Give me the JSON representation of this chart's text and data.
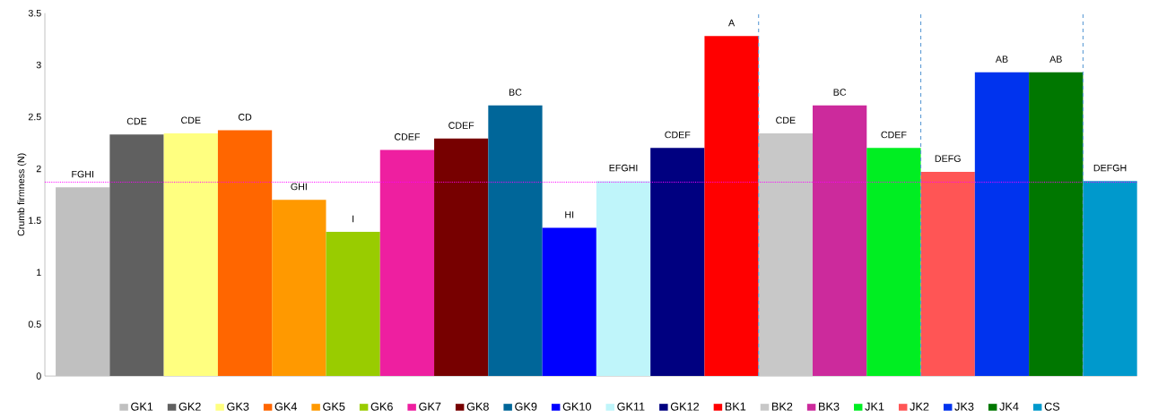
{
  "chart_data": {
    "type": "bar",
    "ylabel": "Crumb firmness (N)",
    "categories": [
      null,
      null,
      null,
      null,
      null,
      null,
      null,
      null,
      null,
      null,
      null,
      null,
      null,
      null,
      null,
      null,
      null,
      null,
      null,
      null
    ],
    "series": [
      {
        "name": "GK1",
        "color": "#c0c0c0",
        "values": [
          1.82,
          null,
          null,
          null,
          null,
          null,
          null,
          null,
          null,
          null,
          null,
          null,
          null,
          null,
          null,
          null,
          null,
          null,
          null,
          null
        ]
      },
      {
        "name": "GK2",
        "color": "#606060",
        "values": [
          null,
          2.33,
          null,
          null,
          null,
          null,
          null,
          null,
          null,
          null,
          null,
          null,
          null,
          null,
          null,
          null,
          null,
          null,
          null,
          null
        ]
      },
      {
        "name": "GK3",
        "color": "#ffff80",
        "values": [
          null,
          null,
          2.34,
          null,
          null,
          null,
          null,
          null,
          null,
          null,
          null,
          null,
          null,
          null,
          null,
          null,
          null,
          null,
          null,
          null
        ]
      },
      {
        "name": "GK4",
        "color": "#ff6600",
        "values": [
          null,
          null,
          null,
          2.37,
          null,
          null,
          null,
          null,
          null,
          null,
          null,
          null,
          null,
          null,
          null,
          null,
          null,
          null,
          null,
          null
        ]
      },
      {
        "name": "GK5",
        "color": "#ff9900",
        "values": [
          null,
          null,
          null,
          null,
          1.7,
          null,
          null,
          null,
          null,
          null,
          null,
          null,
          null,
          null,
          null,
          null,
          null,
          null,
          null,
          null
        ]
      },
      {
        "name": "GK6",
        "color": "#99cc00",
        "values": [
          null,
          null,
          null,
          null,
          null,
          1.39,
          null,
          null,
          null,
          null,
          null,
          null,
          null,
          null,
          null,
          null,
          null,
          null,
          null,
          null
        ]
      },
      {
        "name": "GK7",
        "color": "#ee1fa0",
        "values": [
          null,
          null,
          null,
          null,
          null,
          null,
          2.18,
          null,
          null,
          null,
          null,
          null,
          null,
          null,
          null,
          null,
          null,
          null,
          null,
          null
        ]
      },
      {
        "name": "GK8",
        "color": "#770000",
        "values": [
          null,
          null,
          null,
          null,
          null,
          null,
          null,
          2.29,
          null,
          null,
          null,
          null,
          null,
          null,
          null,
          null,
          null,
          null,
          null,
          null
        ]
      },
      {
        "name": "GK9",
        "color": "#006699",
        "values": [
          null,
          null,
          null,
          null,
          null,
          null,
          null,
          null,
          2.61,
          null,
          null,
          null,
          null,
          null,
          null,
          null,
          null,
          null,
          null,
          null
        ]
      },
      {
        "name": "GK10",
        "color": "#0000ff",
        "values": [
          null,
          null,
          null,
          null,
          null,
          null,
          null,
          null,
          null,
          1.43,
          null,
          null,
          null,
          null,
          null,
          null,
          null,
          null,
          null,
          null
        ]
      },
      {
        "name": "GK11",
        "color": "#bff5fa",
        "values": [
          null,
          null,
          null,
          null,
          null,
          null,
          null,
          null,
          null,
          null,
          1.88,
          null,
          null,
          null,
          null,
          null,
          null,
          null,
          null,
          null
        ]
      },
      {
        "name": "GK12",
        "color": "#000080",
        "values": [
          null,
          null,
          null,
          null,
          null,
          null,
          null,
          null,
          null,
          null,
          null,
          2.2,
          null,
          null,
          null,
          null,
          null,
          null,
          null,
          null
        ]
      },
      {
        "name": "BK1",
        "color": "#ff0000",
        "values": [
          null,
          null,
          null,
          null,
          null,
          null,
          null,
          null,
          null,
          null,
          null,
          null,
          3.28,
          null,
          null,
          null,
          null,
          null,
          null,
          null
        ]
      },
      {
        "name": "BK2",
        "color": "#c8c8c8",
        "values": [
          null,
          null,
          null,
          null,
          null,
          null,
          null,
          null,
          null,
          null,
          null,
          null,
          null,
          2.34,
          null,
          null,
          null,
          null,
          null,
          null
        ]
      },
      {
        "name": "BK3",
        "color": "#cc2a9c",
        "values": [
          null,
          null,
          null,
          null,
          null,
          null,
          null,
          null,
          null,
          null,
          null,
          null,
          null,
          null,
          2.61,
          null,
          null,
          null,
          null,
          null
        ]
      },
      {
        "name": "JK1",
        "color": "#00ee22",
        "values": [
          null,
          null,
          null,
          null,
          null,
          null,
          null,
          null,
          null,
          null,
          null,
          null,
          null,
          null,
          null,
          2.2,
          null,
          null,
          null,
          null
        ]
      },
      {
        "name": "JK2",
        "color": "#ff5555",
        "values": [
          null,
          null,
          null,
          null,
          null,
          null,
          null,
          null,
          null,
          null,
          null,
          null,
          null,
          null,
          null,
          null,
          1.97,
          null,
          null,
          null
        ]
      },
      {
        "name": "JK3",
        "color": "#0033ee",
        "values": [
          null,
          null,
          null,
          null,
          null,
          null,
          null,
          null,
          null,
          null,
          null,
          null,
          null,
          null,
          null,
          null,
          null,
          2.93,
          null,
          null
        ]
      },
      {
        "name": "JK4",
        "color": "#007700",
        "values": [
          null,
          null,
          null,
          null,
          null,
          null,
          null,
          null,
          null,
          null,
          null,
          null,
          null,
          null,
          null,
          null,
          null,
          null,
          2.93,
          null
        ]
      },
      {
        "name": "CS",
        "color": "#0099cc",
        "values": [
          null,
          null,
          null,
          null,
          null,
          null,
          null,
          null,
          null,
          null,
          null,
          null,
          null,
          null,
          null,
          null,
          null,
          null,
          null,
          1.88
        ]
      }
    ],
    "ylim": [
      0,
      3.5
    ],
    "yticks": [
      0,
      0.5,
      1,
      1.5,
      2,
      2.5,
      3,
      3.5
    ],
    "tick_labels": "y",
    "legend": "bottom",
    "ref_lines": [
      {
        "axis": "y",
        "value": 1.87,
        "color": "#ff00ff",
        "line_style": "dotted"
      }
    ],
    "annotations": [
      "FGHI",
      "CDE",
      "CDE",
      "CD",
      "GHI",
      "I",
      "CDEF",
      "CDEF",
      "BC",
      "HI",
      "EFGHI",
      "CDEF",
      "A",
      "CDE",
      "BC",
      "CDEF",
      "DEFG",
      "AB",
      "AB",
      "DEFGH"
    ]
  }
}
